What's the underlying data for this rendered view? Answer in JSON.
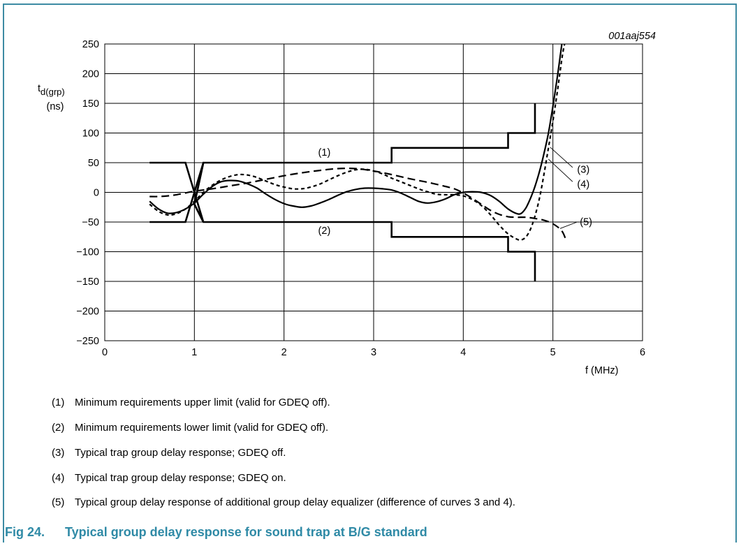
{
  "figure_code": "001aaj554",
  "y_axis": {
    "symbol": "t",
    "subscript": "d(grp)",
    "unit": "(ns)"
  },
  "x_axis": {
    "label": "f (MHz)"
  },
  "curve_labels": [
    "(1)",
    "(2)",
    "(3)",
    "(4)",
    "(5)"
  ],
  "notes": [
    {
      "num": "(1)",
      "text": "Minimum requirements upper limit (valid for GDEQ off)."
    },
    {
      "num": "(2)",
      "text": "Minimum requirements lower limit (valid for GDEQ off)."
    },
    {
      "num": "(3)",
      "text": "Typical trap group delay response; GDEQ off."
    },
    {
      "num": "(4)",
      "text": "Typical trap group delay response; GDEQ on."
    },
    {
      "num": "(5)",
      "text": "Typical group delay response of additional group delay equalizer (difference of curves 3 and 4)."
    }
  ],
  "caption": {
    "fig": "Fig 24.",
    "title": "Typical group delay response for sound trap at B/G standard"
  },
  "colors": {
    "frame": "#3d8ba3",
    "caption": "#2f8aa6",
    "grid": "#000000",
    "curves": "#000000"
  },
  "chart_data": {
    "type": "line",
    "xlabel": "f (MHz)",
    "ylabel": "td(grp) (ns)",
    "xlim": [
      0,
      6
    ],
    "ylim": [
      -250,
      250
    ],
    "x_ticks": [
      0,
      1,
      2,
      3,
      4,
      5,
      6
    ],
    "y_ticks": [
      250,
      200,
      150,
      100,
      50,
      0,
      -50,
      -100,
      -150,
      -200,
      -250
    ],
    "y_tick_labels": [
      "250",
      "200",
      "150",
      "100",
      "50",
      "0",
      "−50",
      "−100",
      "−150",
      "−200",
      "−250"
    ],
    "grid": true,
    "legend": "none",
    "series": [
      {
        "name": "(1)",
        "style": "solid-thick",
        "points": [
          [
            0.5,
            50
          ],
          [
            0.9,
            50
          ],
          [
            1.1,
            -50
          ],
          [
            1.0,
            -20
          ],
          [
            1.1,
            50
          ],
          [
            3.2,
            50
          ],
          [
            3.2,
            75
          ],
          [
            4.5,
            75
          ],
          [
            4.5,
            100
          ],
          [
            4.8,
            100
          ],
          [
            4.8,
            150
          ]
        ]
      },
      {
        "name": "(2)",
        "style": "solid-thick",
        "points": [
          [
            0.5,
            -50
          ],
          [
            0.9,
            -50
          ],
          [
            1.1,
            50
          ],
          [
            1.0,
            -20
          ],
          [
            1.1,
            -50
          ],
          [
            3.2,
            -50
          ],
          [
            3.2,
            -75
          ],
          [
            4.5,
            -75
          ],
          [
            4.5,
            -100
          ],
          [
            4.8,
            -100
          ],
          [
            4.8,
            -150
          ]
        ]
      },
      {
        "name": "(3)",
        "style": "solid",
        "points": [
          [
            0.5,
            -15
          ],
          [
            0.6,
            -28
          ],
          [
            0.7,
            -35
          ],
          [
            0.8,
            -34
          ],
          [
            0.9,
            -28
          ],
          [
            1.0,
            -18
          ],
          [
            1.1,
            -3
          ],
          [
            1.2,
            10
          ],
          [
            1.3,
            18
          ],
          [
            1.4,
            20
          ],
          [
            1.5,
            19
          ],
          [
            1.6,
            14
          ],
          [
            1.7,
            7
          ],
          [
            1.8,
            -3
          ],
          [
            1.9,
            -12
          ],
          [
            2.0,
            -19
          ],
          [
            2.1,
            -23
          ],
          [
            2.2,
            -25
          ],
          [
            2.3,
            -23
          ],
          [
            2.4,
            -18
          ],
          [
            2.5,
            -12
          ],
          [
            2.6,
            -5
          ],
          [
            2.7,
            1
          ],
          [
            2.8,
            5
          ],
          [
            2.9,
            7
          ],
          [
            3.0,
            7
          ],
          [
            3.1,
            6
          ],
          [
            3.2,
            4
          ],
          [
            3.3,
            -1
          ],
          [
            3.4,
            -8
          ],
          [
            3.5,
            -15
          ],
          [
            3.6,
            -18
          ],
          [
            3.7,
            -16
          ],
          [
            3.8,
            -11
          ],
          [
            3.9,
            -4
          ],
          [
            4.0,
            0
          ],
          [
            4.1,
            1
          ],
          [
            4.2,
            0
          ],
          [
            4.3,
            -5
          ],
          [
            4.4,
            -15
          ],
          [
            4.5,
            -28
          ],
          [
            4.6,
            -36
          ],
          [
            4.65,
            -35
          ],
          [
            4.7,
            -26
          ],
          [
            4.75,
            -10
          ],
          [
            4.8,
            10
          ],
          [
            4.85,
            35
          ],
          [
            4.9,
            65
          ],
          [
            4.95,
            100
          ],
          [
            5.0,
            145
          ],
          [
            5.05,
            195
          ],
          [
            5.1,
            250
          ]
        ]
      },
      {
        "name": "(4)",
        "style": "dashed-short",
        "points": [
          [
            0.5,
            -20
          ],
          [
            0.6,
            -32
          ],
          [
            0.7,
            -38
          ],
          [
            0.8,
            -36
          ],
          [
            0.9,
            -28
          ],
          [
            1.0,
            -15
          ],
          [
            1.1,
            0
          ],
          [
            1.2,
            12
          ],
          [
            1.3,
            21
          ],
          [
            1.4,
            27
          ],
          [
            1.5,
            30
          ],
          [
            1.6,
            29
          ],
          [
            1.7,
            25
          ],
          [
            1.8,
            19
          ],
          [
            1.9,
            13
          ],
          [
            2.0,
            9
          ],
          [
            2.1,
            6
          ],
          [
            2.2,
            6
          ],
          [
            2.3,
            9
          ],
          [
            2.4,
            14
          ],
          [
            2.5,
            21
          ],
          [
            2.6,
            28
          ],
          [
            2.7,
            34
          ],
          [
            2.8,
            38
          ],
          [
            2.9,
            39
          ],
          [
            3.0,
            36
          ],
          [
            3.1,
            31
          ],
          [
            3.2,
            24
          ],
          [
            3.3,
            18
          ],
          [
            3.4,
            12
          ],
          [
            3.5,
            6
          ],
          [
            3.6,
            1
          ],
          [
            3.7,
            -3
          ],
          [
            3.8,
            -4
          ],
          [
            3.9,
            -4
          ],
          [
            4.0,
            -6
          ],
          [
            4.1,
            -12
          ],
          [
            4.2,
            -22
          ],
          [
            4.3,
            -37
          ],
          [
            4.4,
            -55
          ],
          [
            4.5,
            -70
          ],
          [
            4.6,
            -79
          ],
          [
            4.65,
            -80
          ],
          [
            4.7,
            -75
          ],
          [
            4.75,
            -62
          ],
          [
            4.8,
            -40
          ],
          [
            4.85,
            -10
          ],
          [
            4.9,
            30
          ],
          [
            4.95,
            75
          ],
          [
            5.0,
            120
          ],
          [
            5.05,
            170
          ],
          [
            5.1,
            225
          ],
          [
            5.13,
            250
          ]
        ]
      },
      {
        "name": "(5)",
        "style": "dashed-long",
        "points": [
          [
            0.5,
            -7
          ],
          [
            0.6,
            -7
          ],
          [
            0.7,
            -6
          ],
          [
            0.8,
            -4
          ],
          [
            0.9,
            -1
          ],
          [
            1.0,
            2
          ],
          [
            1.2,
            6
          ],
          [
            1.4,
            11
          ],
          [
            1.6,
            16
          ],
          [
            1.8,
            22
          ],
          [
            2.0,
            28
          ],
          [
            2.2,
            33
          ],
          [
            2.4,
            37
          ],
          [
            2.6,
            40
          ],
          [
            2.8,
            40
          ],
          [
            3.0,
            36
          ],
          [
            3.2,
            30
          ],
          [
            3.4,
            23
          ],
          [
            3.6,
            17
          ],
          [
            3.8,
            10
          ],
          [
            3.9,
            6
          ],
          [
            4.0,
            -1
          ],
          [
            4.1,
            -10
          ],
          [
            4.2,
            -20
          ],
          [
            4.3,
            -30
          ],
          [
            4.4,
            -37
          ],
          [
            4.5,
            -41
          ],
          [
            4.6,
            -42
          ],
          [
            4.7,
            -42
          ],
          [
            4.8,
            -44
          ],
          [
            4.9,
            -47
          ],
          [
            5.0,
            -53
          ],
          [
            5.1,
            -65
          ],
          [
            5.15,
            -82
          ]
        ]
      }
    ]
  }
}
